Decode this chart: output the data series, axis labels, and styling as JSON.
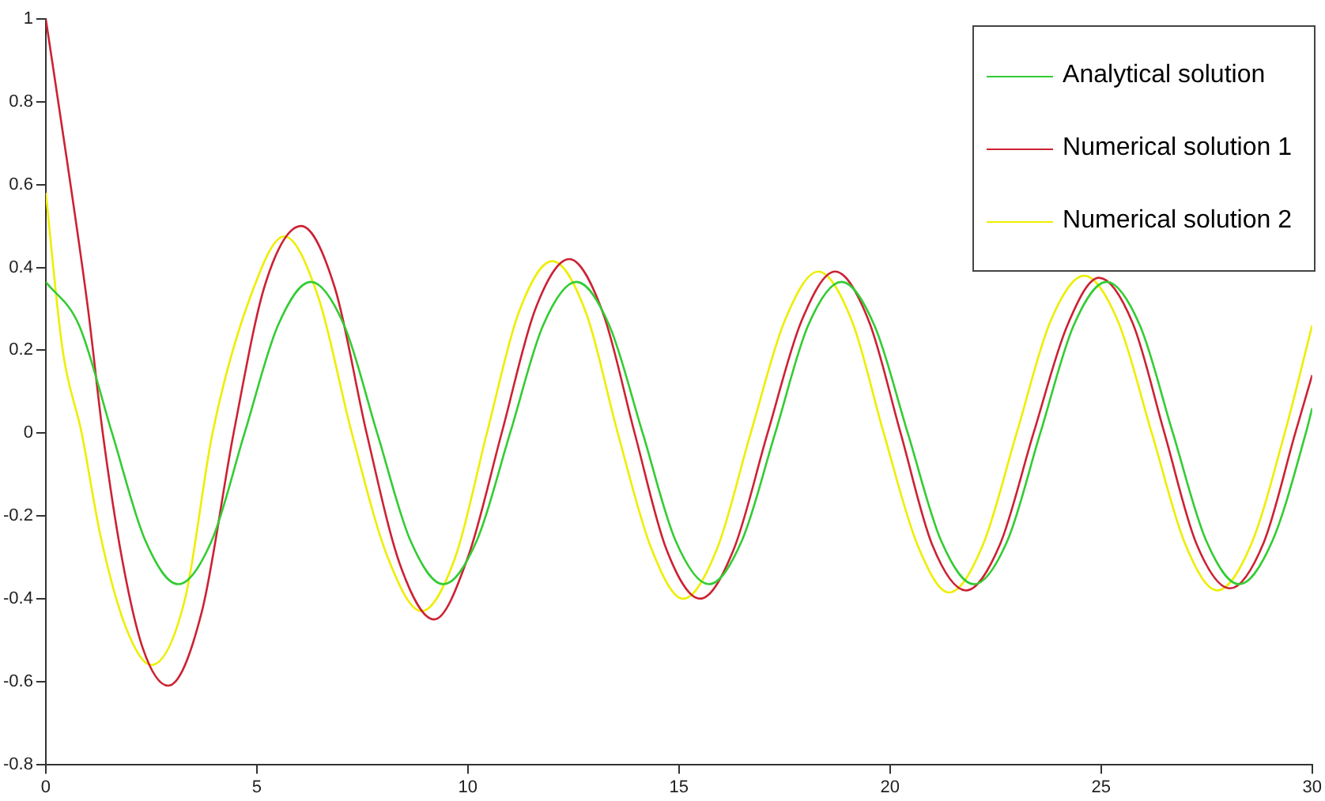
{
  "chart_data": {
    "type": "line",
    "xlim": [
      0,
      30
    ],
    "ylim": [
      -0.8,
      1
    ],
    "xticks": [
      0,
      5,
      10,
      15,
      20,
      25,
      30
    ],
    "yticks": [
      -0.8,
      -0.6,
      -0.4,
      -0.2,
      0,
      0.2,
      0.4,
      0.6,
      0.8,
      1
    ],
    "legend": "top right",
    "marker": "none",
    "line_style": "solid",
    "series": [
      {
        "name": "Analytical solution",
        "color": "#33cc33",
        "x": [
          0,
          0.79,
          1.57,
          2.36,
          3.14,
          3.93,
          4.71,
          5.5,
          6.28,
          7.07,
          7.85,
          8.64,
          9.42,
          10.21,
          11.0,
          11.78,
          12.57,
          13.35,
          14.14,
          14.92,
          15.71,
          16.49,
          17.28,
          18.06,
          18.85,
          19.63,
          20.42,
          21.21,
          21.99,
          22.78,
          23.56,
          24.35,
          25.13,
          25.92,
          26.7,
          27.49,
          28.27,
          29.06,
          29.85,
          30
        ],
        "values": [
          0.365,
          0.26,
          0,
          -0.26,
          -0.365,
          -0.26,
          0,
          0.26,
          0.365,
          0.26,
          0,
          -0.26,
          -0.365,
          -0.26,
          0,
          0.26,
          0.365,
          0.26,
          0,
          -0.26,
          -0.365,
          -0.26,
          0,
          0.26,
          0.365,
          0.26,
          0,
          -0.26,
          -0.365,
          -0.26,
          0,
          0.26,
          0.365,
          0.26,
          0,
          -0.26,
          -0.365,
          -0.26,
          0,
          0.06
        ]
      },
      {
        "name": "Numerical solution 1",
        "color": "#cc2233",
        "x": [
          0,
          0.5,
          1.0,
          1.35,
          1.8,
          2.3,
          2.9,
          3.7,
          4.45,
          5.2,
          6.05,
          6.85,
          7.6,
          8.4,
          9.2,
          10.0,
          10.8,
          11.6,
          12.4,
          13.2,
          13.95,
          14.7,
          15.5,
          16.3,
          17.1,
          17.9,
          18.7,
          19.5,
          20.25,
          21.0,
          21.8,
          22.6,
          23.4,
          24.2,
          24.95,
          25.75,
          26.5,
          27.25,
          28.05,
          28.85,
          29.6,
          30
        ],
        "values": [
          1.0,
          0.66,
          0.3,
          0,
          -0.3,
          -0.52,
          -0.61,
          -0.43,
          0,
          0.36,
          0.5,
          0.35,
          0,
          -0.32,
          -0.45,
          -0.3,
          0,
          0.3,
          0.42,
          0.29,
          0,
          -0.28,
          -0.4,
          -0.28,
          0,
          0.27,
          0.39,
          0.27,
          0,
          -0.27,
          -0.38,
          -0.27,
          0,
          0.26,
          0.375,
          0.265,
          0,
          -0.265,
          -0.375,
          -0.265,
          0,
          0.14
        ]
      },
      {
        "name": "Numerical solution 2",
        "color": "#eeee00",
        "x": [
          0,
          0.4,
          0.85,
          1.3,
          1.9,
          2.5,
          3.3,
          3.95,
          4.85,
          5.65,
          6.45,
          7.25,
          8.1,
          8.9,
          9.7,
          10.45,
          11.2,
          12.0,
          12.8,
          13.55,
          14.35,
          15.1,
          15.9,
          16.7,
          17.5,
          18.3,
          19.1,
          19.85,
          20.65,
          21.4,
          22.2,
          23.0,
          23.8,
          24.6,
          25.4,
          26.2,
          27.0,
          27.75,
          28.55,
          29.35,
          30
        ],
        "values": [
          0.58,
          0.2,
          0,
          -0.25,
          -0.47,
          -0.56,
          -0.4,
          0,
          0.33,
          0.475,
          0.33,
          0,
          -0.3,
          -0.43,
          -0.3,
          0,
          0.29,
          0.415,
          0.29,
          0,
          -0.28,
          -0.4,
          -0.28,
          0,
          0.27,
          0.39,
          0.27,
          0,
          -0.27,
          -0.385,
          -0.27,
          0,
          0.27,
          0.38,
          0.27,
          0,
          -0.27,
          -0.38,
          -0.27,
          0,
          0.26
        ]
      }
    ]
  }
}
